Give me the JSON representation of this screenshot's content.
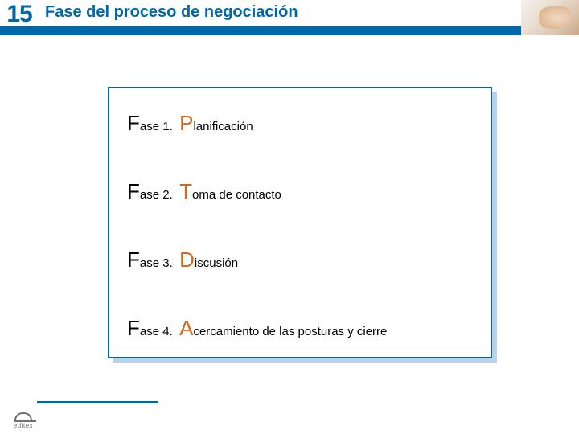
{
  "colors": {
    "brand_blue": "#0068a9",
    "accent_orange": "#cb6a22",
    "header_bar": "#0068a9",
    "box_shadow": "#b9d2e6",
    "box_border": "#0068a9",
    "footer_line": "#0068a9",
    "text_black": "#000000"
  },
  "header": {
    "number": "15",
    "title": "Fase del proceso de negociación"
  },
  "phases": [
    {
      "prefix_big": "F",
      "prefix_rest": "ase 1.",
      "word_big": "P",
      "word_rest": "lanificación"
    },
    {
      "prefix_big": "F",
      "prefix_rest": "ase 2.",
      "word_big": "T",
      "word_rest": "oma de contacto"
    },
    {
      "prefix_big": "F",
      "prefix_rest": "ase 3.",
      "word_big": "D",
      "word_rest": "iscusión"
    },
    {
      "prefix_big": "F",
      "prefix_rest": "ase 4.",
      "word_big": "A",
      "word_rest": "cercamiento de las posturas y  cierre"
    }
  ],
  "footer": {
    "logo_text": "editex"
  }
}
